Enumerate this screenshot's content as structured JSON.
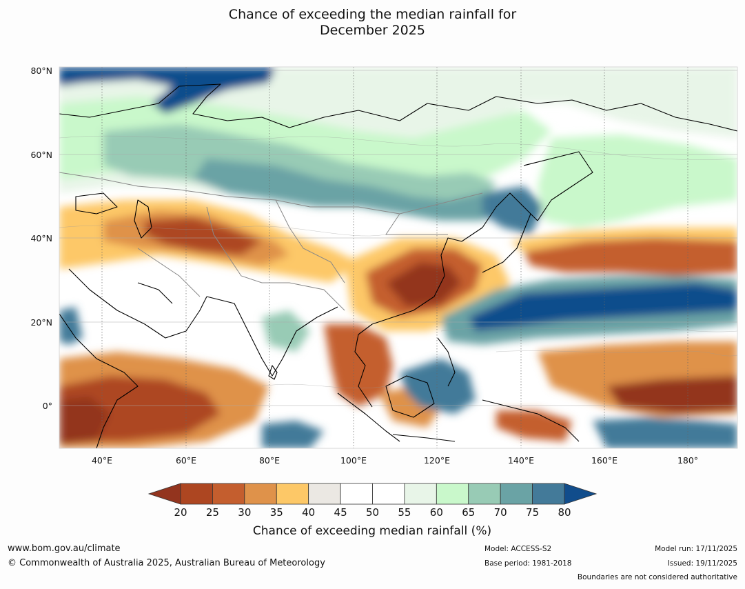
{
  "title": {
    "line1": "Chance of exceeding the median rainfall for",
    "line2": "December 2025"
  },
  "map": {
    "lat_labels": [
      "80°N",
      "60°N",
      "40°N",
      "20°N",
      "0°"
    ],
    "lon_labels": [
      "40°E",
      "60°E",
      "80°E",
      "100°E",
      "120°E",
      "140°E",
      "160°E",
      "180°"
    ],
    "extent": {
      "lon_min": 30,
      "lon_max": 190,
      "lat_min": -10,
      "lat_max": 80
    }
  },
  "colorbar": {
    "title": "Chance of exceeding median rainfall (%)",
    "ticks": [
      "20",
      "25",
      "30",
      "35",
      "40",
      "45",
      "50",
      "55",
      "60",
      "65",
      "70",
      "75",
      "80"
    ],
    "under_color": "#93341e",
    "over_color": "#114d8c",
    "bins": [
      {
        "range": "20-25",
        "color": "#ad4621"
      },
      {
        "range": "25-30",
        "color": "#c45e2e"
      },
      {
        "range": "30-35",
        "color": "#df924a"
      },
      {
        "range": "35-40",
        "color": "#fdc867"
      },
      {
        "range": "40-45",
        "color": "#ebe8e3"
      },
      {
        "range": "45-50",
        "color": "#ffffff"
      },
      {
        "range": "50-55",
        "color": "#ffffff"
      },
      {
        "range": "55-60",
        "color": "#e8f5e8"
      },
      {
        "range": "60-65",
        "color": "#c9f8cb"
      },
      {
        "range": "65-70",
        "color": "#98cbb5"
      },
      {
        "range": "70-75",
        "color": "#6aa3a5"
      },
      {
        "range": "75-80",
        "color": "#437a99"
      }
    ]
  },
  "footer": {
    "website": "www.bom.gov.au/climate",
    "copyright": "© Commonwealth of Australia 2025, Australian Bureau of Meteorology",
    "model": "Model: ACCESS-S2",
    "base_period": "Base period: 1981-2018",
    "model_run": "Model run: 17/11/2025",
    "issued": "Issued: 19/11/2025",
    "disclaimer": "Boundaries are not considered authoritative"
  }
}
